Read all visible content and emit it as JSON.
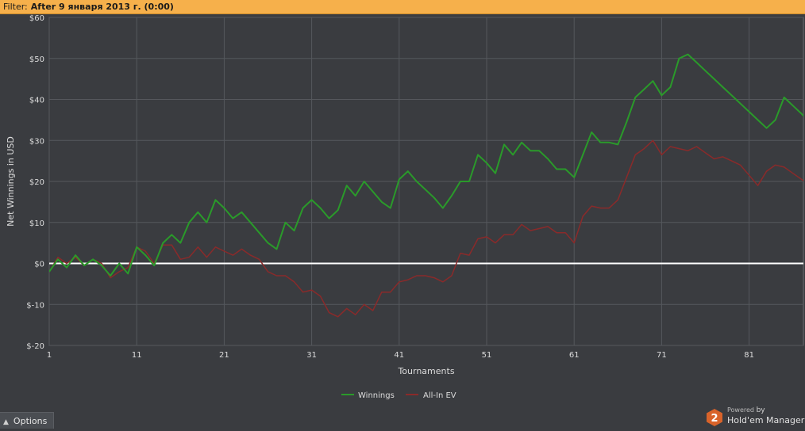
{
  "filter": {
    "label": "Filter:",
    "value": "After 9 января 2013 г. (0:00)"
  },
  "options_label": "Options",
  "branding": {
    "powered": "Powered",
    "by": "by",
    "product": "Hold'em Manager",
    "logo_text": "2"
  },
  "colors": {
    "background": "#3a3c40",
    "grid": "#55585d",
    "zero_line": "#ffffff",
    "winnings": "#2a9a2a",
    "allin_ev": "#8a2a2a"
  },
  "chart_data": {
    "type": "line",
    "xlabel": "Tournaments",
    "ylabel": "Net Winnings in USD",
    "xlim": [
      1,
      87
    ],
    "ylim": [
      -20,
      60
    ],
    "xticks": [
      1,
      11,
      21,
      31,
      41,
      51,
      61,
      71,
      81
    ],
    "yticks": [
      -20,
      -10,
      0,
      10,
      20,
      30,
      40,
      50,
      60
    ],
    "ytick_labels": [
      "$-20",
      "$-10",
      "$0",
      "$10",
      "$20",
      "$30",
      "$40",
      "$50",
      "$60"
    ],
    "grid": true,
    "legend": "bottom-center",
    "series": [
      {
        "name": "Winnings",
        "color": "#2a9a2a",
        "points": [
          [
            1,
            -2
          ],
          [
            2,
            1
          ],
          [
            3,
            -1
          ],
          [
            4,
            2
          ],
          [
            5,
            -0.5
          ],
          [
            6,
            1
          ],
          [
            7,
            -0.5
          ],
          [
            8,
            -3
          ],
          [
            9,
            0
          ],
          [
            10,
            -2.5
          ],
          [
            11,
            4
          ],
          [
            12,
            2
          ],
          [
            13,
            -0.5
          ],
          [
            14,
            5
          ],
          [
            15,
            7
          ],
          [
            16,
            5
          ],
          [
            17,
            10
          ],
          [
            18,
            12.5
          ],
          [
            19,
            10
          ],
          [
            20,
            15.5
          ],
          [
            21,
            13.5
          ],
          [
            22,
            11
          ],
          [
            23,
            12.5
          ],
          [
            24,
            10
          ],
          [
            25,
            7.5
          ],
          [
            26,
            5
          ],
          [
            27,
            3.5
          ],
          [
            28,
            10
          ],
          [
            29,
            8
          ],
          [
            30,
            13.5
          ],
          [
            31,
            15.5
          ],
          [
            32,
            13.5
          ],
          [
            33,
            11
          ],
          [
            34,
            13
          ],
          [
            35,
            19
          ],
          [
            36,
            16.5
          ],
          [
            37,
            20
          ],
          [
            38,
            17.5
          ],
          [
            39,
            15
          ],
          [
            40,
            13.5
          ],
          [
            41,
            20.5
          ],
          [
            42,
            22.5
          ],
          [
            43,
            20
          ],
          [
            44,
            18
          ],
          [
            45,
            16
          ],
          [
            46,
            13.5
          ],
          [
            47,
            16.5
          ],
          [
            48,
            20
          ],
          [
            49,
            20
          ],
          [
            50,
            26.5
          ],
          [
            51,
            24.5
          ],
          [
            52,
            22
          ],
          [
            53,
            29
          ],
          [
            54,
            26.5
          ],
          [
            55,
            29.5
          ],
          [
            56,
            27.5
          ],
          [
            57,
            27.5
          ],
          [
            58,
            25.5
          ],
          [
            59,
            23
          ],
          [
            60,
            23
          ],
          [
            61,
            21
          ],
          [
            62,
            26.5
          ],
          [
            63,
            32
          ],
          [
            64,
            29.5
          ],
          [
            65,
            29.5
          ],
          [
            66,
            29
          ],
          [
            67,
            34.5
          ],
          [
            68,
            40.5
          ],
          [
            69,
            42.5
          ],
          [
            70,
            44.5
          ],
          [
            71,
            41
          ],
          [
            72,
            43
          ],
          [
            73,
            50
          ],
          [
            74,
            51
          ],
          [
            75,
            49
          ],
          [
            76,
            47
          ],
          [
            77,
            45
          ],
          [
            78,
            43
          ],
          [
            79,
            41
          ],
          [
            80,
            39
          ],
          [
            81,
            37
          ],
          [
            82,
            35
          ],
          [
            83,
            33
          ],
          [
            84,
            35
          ],
          [
            85,
            40.5
          ],
          [
            86,
            38.5
          ],
          [
            87,
            36.5
          ],
          [
            88,
            34
          ]
        ]
      },
      {
        "name": "All-In EV",
        "color": "#8a2a2a",
        "points": [
          [
            1,
            -2
          ],
          [
            2,
            1.5
          ],
          [
            3,
            0
          ],
          [
            4,
            1.5
          ],
          [
            5,
            -0.5
          ],
          [
            6,
            1
          ],
          [
            7,
            0
          ],
          [
            8,
            -3.5
          ],
          [
            9,
            -2
          ],
          [
            10,
            -1
          ],
          [
            11,
            4
          ],
          [
            12,
            3
          ],
          [
            13,
            0
          ],
          [
            14,
            4.5
          ],
          [
            15,
            4.5
          ],
          [
            16,
            1
          ],
          [
            17,
            1.5
          ],
          [
            18,
            4
          ],
          [
            19,
            1.5
          ],
          [
            20,
            4
          ],
          [
            21,
            3
          ],
          [
            22,
            2
          ],
          [
            23,
            3.5
          ],
          [
            24,
            2
          ],
          [
            25,
            1
          ],
          [
            26,
            -2
          ],
          [
            27,
            -3
          ],
          [
            28,
            -3
          ],
          [
            29,
            -4.5
          ],
          [
            30,
            -7
          ],
          [
            31,
            -6.5
          ],
          [
            32,
            -8
          ],
          [
            33,
            -12
          ],
          [
            34,
            -13
          ],
          [
            35,
            -11
          ],
          [
            36,
            -12.5
          ],
          [
            37,
            -10
          ],
          [
            38,
            -11.5
          ],
          [
            39,
            -7
          ],
          [
            40,
            -7
          ],
          [
            41,
            -4.5
          ],
          [
            42,
            -4
          ],
          [
            43,
            -3
          ],
          [
            44,
            -3
          ],
          [
            45,
            -3.5
          ],
          [
            46,
            -4.5
          ],
          [
            47,
            -3
          ],
          [
            48,
            2.5
          ],
          [
            49,
            2
          ],
          [
            50,
            6
          ],
          [
            51,
            6.5
          ],
          [
            52,
            5
          ],
          [
            53,
            7
          ],
          [
            54,
            7
          ],
          [
            55,
            9.5
          ],
          [
            56,
            8
          ],
          [
            57,
            8.5
          ],
          [
            58,
            9
          ],
          [
            59,
            7.5
          ],
          [
            60,
            7.5
          ],
          [
            61,
            5
          ],
          [
            62,
            11.5
          ],
          [
            63,
            14
          ],
          [
            64,
            13.5
          ],
          [
            65,
            13.5
          ],
          [
            66,
            15.5
          ],
          [
            67,
            21
          ],
          [
            68,
            26.5
          ],
          [
            69,
            28
          ],
          [
            70,
            30
          ],
          [
            71,
            26.5
          ],
          [
            72,
            28.5
          ],
          [
            73,
            28
          ],
          [
            74,
            27.5
          ],
          [
            75,
            28.5
          ],
          [
            76,
            27
          ],
          [
            77,
            25.5
          ],
          [
            78,
            26
          ],
          [
            79,
            25
          ],
          [
            80,
            24
          ],
          [
            81,
            21.5
          ],
          [
            82,
            19
          ],
          [
            83,
            22.5
          ],
          [
            84,
            24
          ],
          [
            85,
            23.5
          ],
          [
            86,
            22
          ],
          [
            87,
            20.5
          ],
          [
            88,
            19
          ]
        ]
      }
    ]
  }
}
